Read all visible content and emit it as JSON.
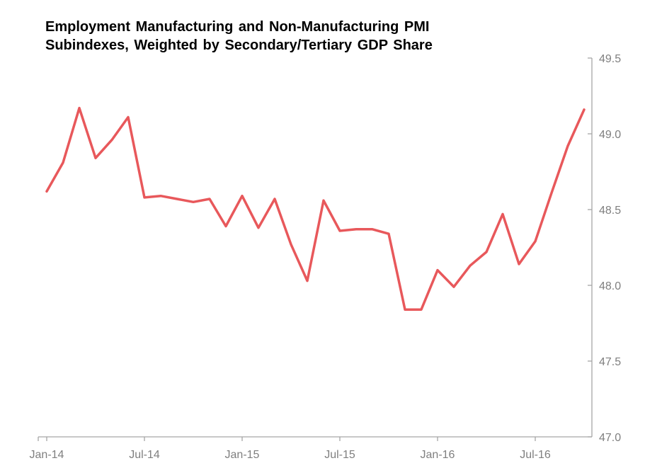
{
  "chart_data": {
    "type": "line",
    "title_lines": [
      "Employment Manufacturing and Non-Manufacturing PMI",
      "Subindexes, Weighted by Secondary/Tertiary GDP Share"
    ],
    "xlabel": "",
    "ylabel": "",
    "x_tick_labels": [
      "Jan-14",
      "Jul-14",
      "Jan-15",
      "Jul-15",
      "Jan-16",
      "Jul-16"
    ],
    "x_tick_months": [
      "2014-01",
      "2014-07",
      "2015-01",
      "2015-07",
      "2016-01",
      "2016-07"
    ],
    "y_tick_labels": [
      "49.5",
      "49.0",
      "48.5",
      "48.0",
      "47.5",
      "47.0"
    ],
    "y_ticks": [
      49.5,
      49.0,
      48.5,
      48.0,
      47.5,
      47.0
    ],
    "ylim": [
      47.0,
      49.5
    ],
    "y_axis_position": "right",
    "grid": false,
    "legend": "none",
    "line_color": "#e8585b",
    "axis_color": "#a6a6a6",
    "tick_label_color": "#7f7f7f",
    "series": [
      {
        "x": [
          "2014-01",
          "2014-02",
          "2014-03",
          "2014-04",
          "2014-05",
          "2014-06",
          "2014-07",
          "2014-08",
          "2014-09",
          "2014-10",
          "2014-11",
          "2014-12",
          "2015-01",
          "2015-02",
          "2015-03",
          "2015-04",
          "2015-05",
          "2015-06",
          "2015-07",
          "2015-08",
          "2015-09",
          "2015-10",
          "2015-11",
          "2015-12",
          "2016-01",
          "2016-02",
          "2016-03",
          "2016-04",
          "2016-05",
          "2016-06",
          "2016-07",
          "2016-08",
          "2016-09",
          "2016-10"
        ],
        "values": [
          48.62,
          48.81,
          49.17,
          48.84,
          48.96,
          49.11,
          48.58,
          48.59,
          48.57,
          48.55,
          48.57,
          48.39,
          48.59,
          48.38,
          48.57,
          48.27,
          48.03,
          48.56,
          48.36,
          48.37,
          48.37,
          48.34,
          47.84,
          47.84,
          48.1,
          47.99,
          48.13,
          48.22,
          48.47,
          48.14,
          48.29,
          48.61,
          48.92,
          49.16
        ]
      }
    ]
  }
}
